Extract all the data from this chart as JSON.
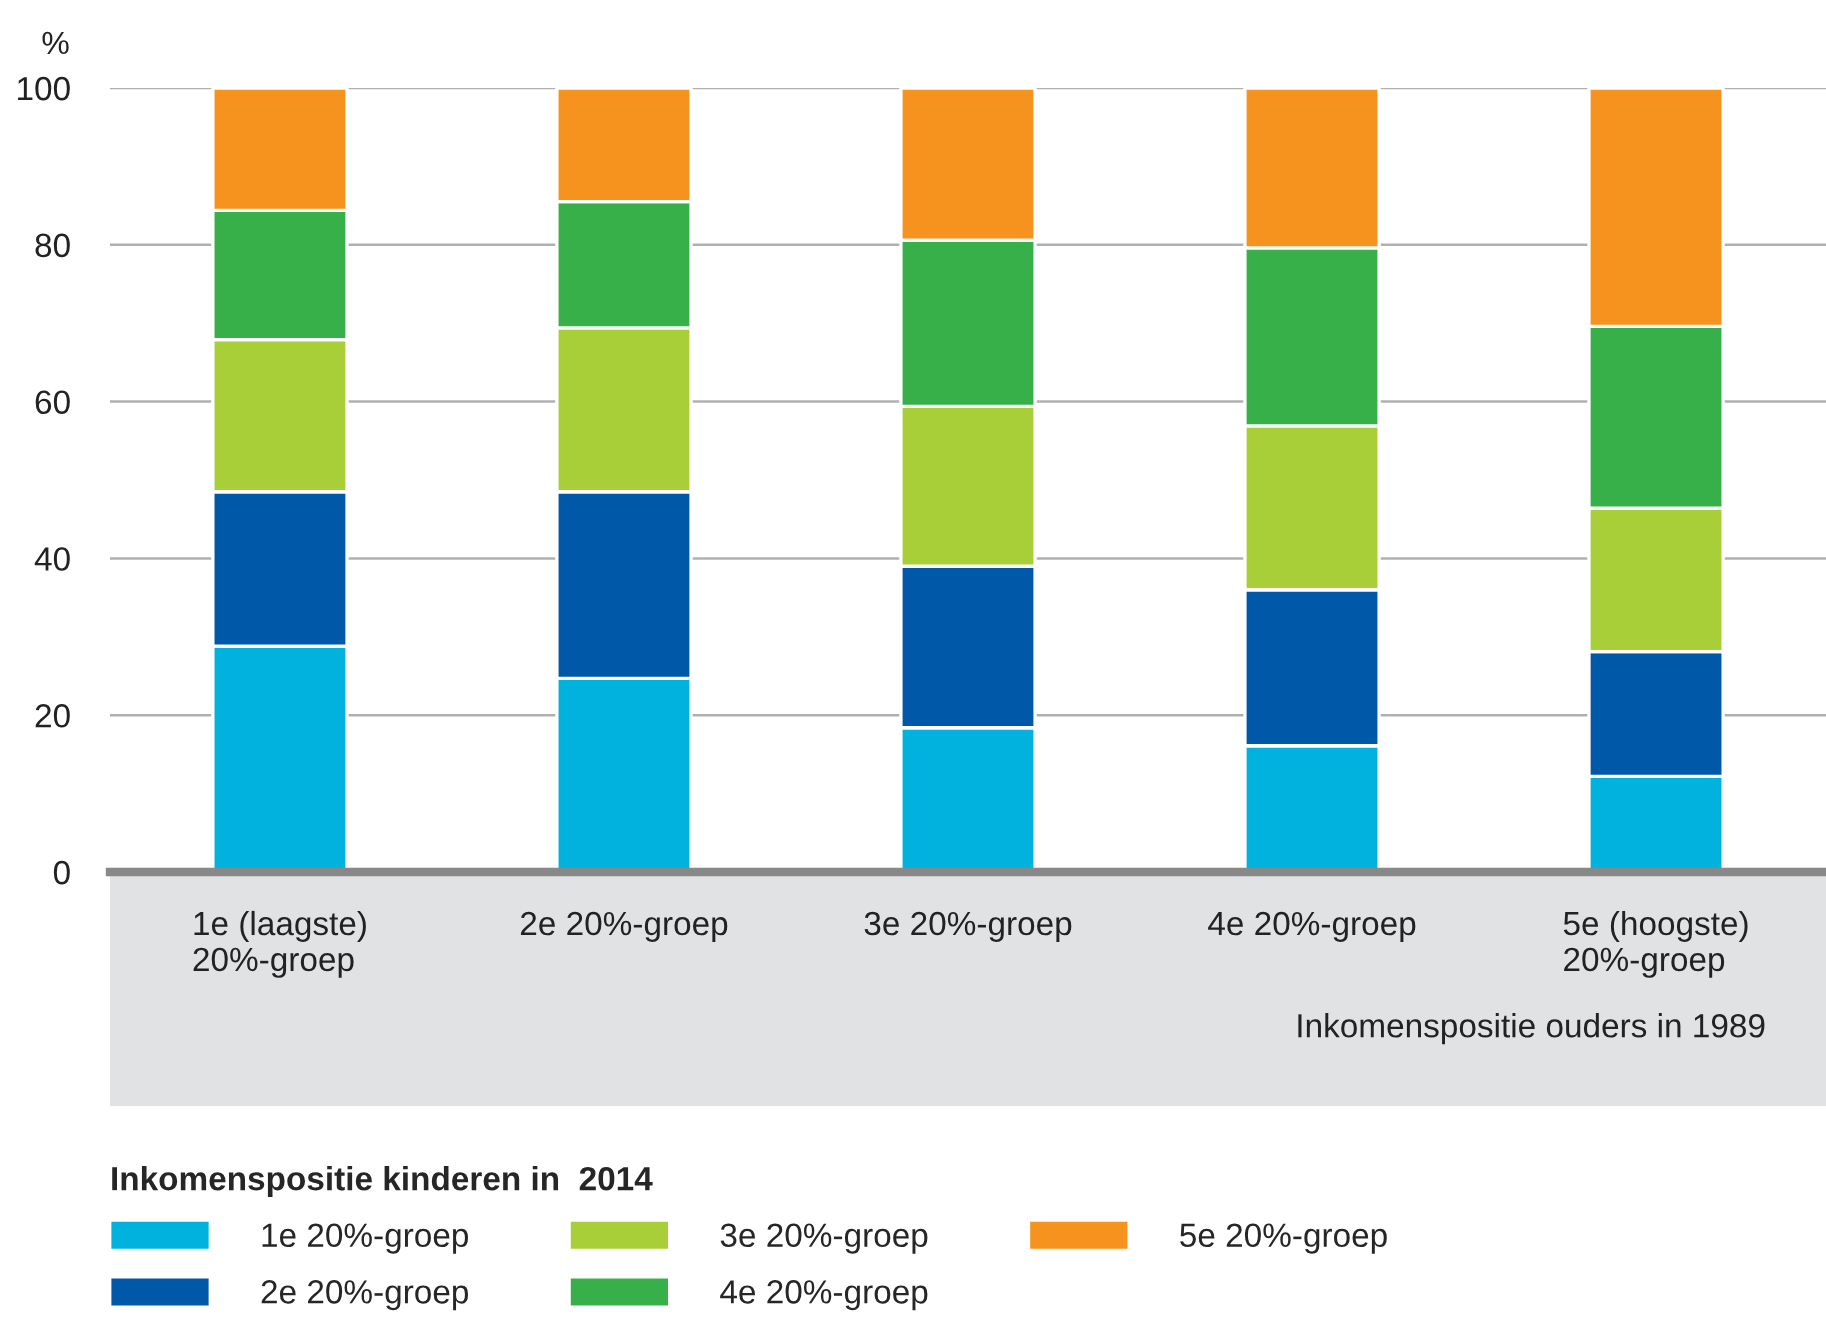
{
  "chart_data": {
    "type": "bar",
    "stacked": true,
    "ylabel": "%",
    "xlabel": "Inkomenspositie ouders in 1989",
    "legend_title": "Inkomenspositie kinderen in  2014",
    "categories": [
      "1e (laagste)\n20%-groep",
      "2e 20%-groep",
      "3e 20%-groep",
      "4e 20%-groep",
      "5e (hoogste)\n20%-groep"
    ],
    "series": [
      {
        "name": "1e 20%-groep",
        "color": "#00b2dd",
        "values": [
          28.8,
          24.7,
          18.4,
          16.1,
          12.2
        ]
      },
      {
        "name": "2e 20%-groep",
        "color": "#0058a8",
        "values": [
          19.7,
          23.8,
          20.6,
          19.9,
          15.9
        ]
      },
      {
        "name": "3e 20%-groep",
        "color": "#a8cf38",
        "values": [
          19.4,
          20.9,
          20.4,
          20.9,
          18.3
        ]
      },
      {
        "name": "4e 20%-groep",
        "color": "#38b04a",
        "values": [
          16.5,
          16.1,
          21.2,
          22.7,
          23.2
        ]
      },
      {
        "name": "5e 20%-groep",
        "color": "#f6931e",
        "values": [
          15.6,
          14.5,
          19.4,
          20.4,
          30.4
        ]
      }
    ],
    "ylim": [
      0,
      100
    ],
    "yticks": [
      0,
      20,
      40,
      60,
      80,
      100
    ],
    "grid": "y",
    "legend": "bottom"
  }
}
